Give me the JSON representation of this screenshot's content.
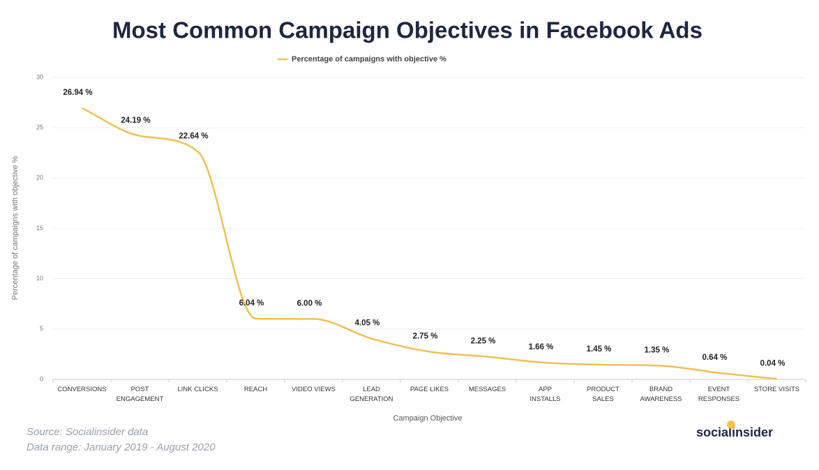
{
  "chart_data": {
    "type": "line",
    "title": "Most Common Campaign Objectives in Facebook Ads",
    "x_label": "Campaign Objective",
    "y_label": "Percentage of campaigns with objective %",
    "categories": [
      "CONVERSIONS",
      "POST\nENGAGEMENT",
      "LINK CLICKS",
      "REACH",
      "VIDEO VIEWS",
      "LEAD\nGENERATION",
      "PAGE LIKES",
      "MESSAGES",
      "APP\nINSTALLS",
      "PRODUCT\nSALES",
      "BRAND\nAWARENESS",
      "EVENT\nRESPONSES",
      "STORE VISITS"
    ],
    "series": [
      {
        "name": "Percentage of campaigns with objective %",
        "color": "#f2bf55",
        "values": [
          26.94,
          24.19,
          22.64,
          6.04,
          6.0,
          4.05,
          2.75,
          2.25,
          1.66,
          1.45,
          1.35,
          0.64,
          0.04
        ],
        "value_labels": [
          "26.94 %",
          "24.19 %",
          "22.64 %",
          "6.04 %",
          "6.00 %",
          "4.05 %",
          "2.75 %",
          "2.25 %",
          "1.66 %",
          "1.45 %",
          "1.35 %",
          "0.64 %",
          "0.04 %"
        ]
      }
    ],
    "ylim": [
      0,
      30
    ],
    "yticks": [
      0,
      5,
      10,
      15,
      20,
      25,
      30
    ],
    "grid": true,
    "smooth": true,
    "legend": "top",
    "source": "Source: Socialinsider data",
    "date_range": "Data range: January 2019 - August 2020",
    "logo": "socialinsider"
  }
}
